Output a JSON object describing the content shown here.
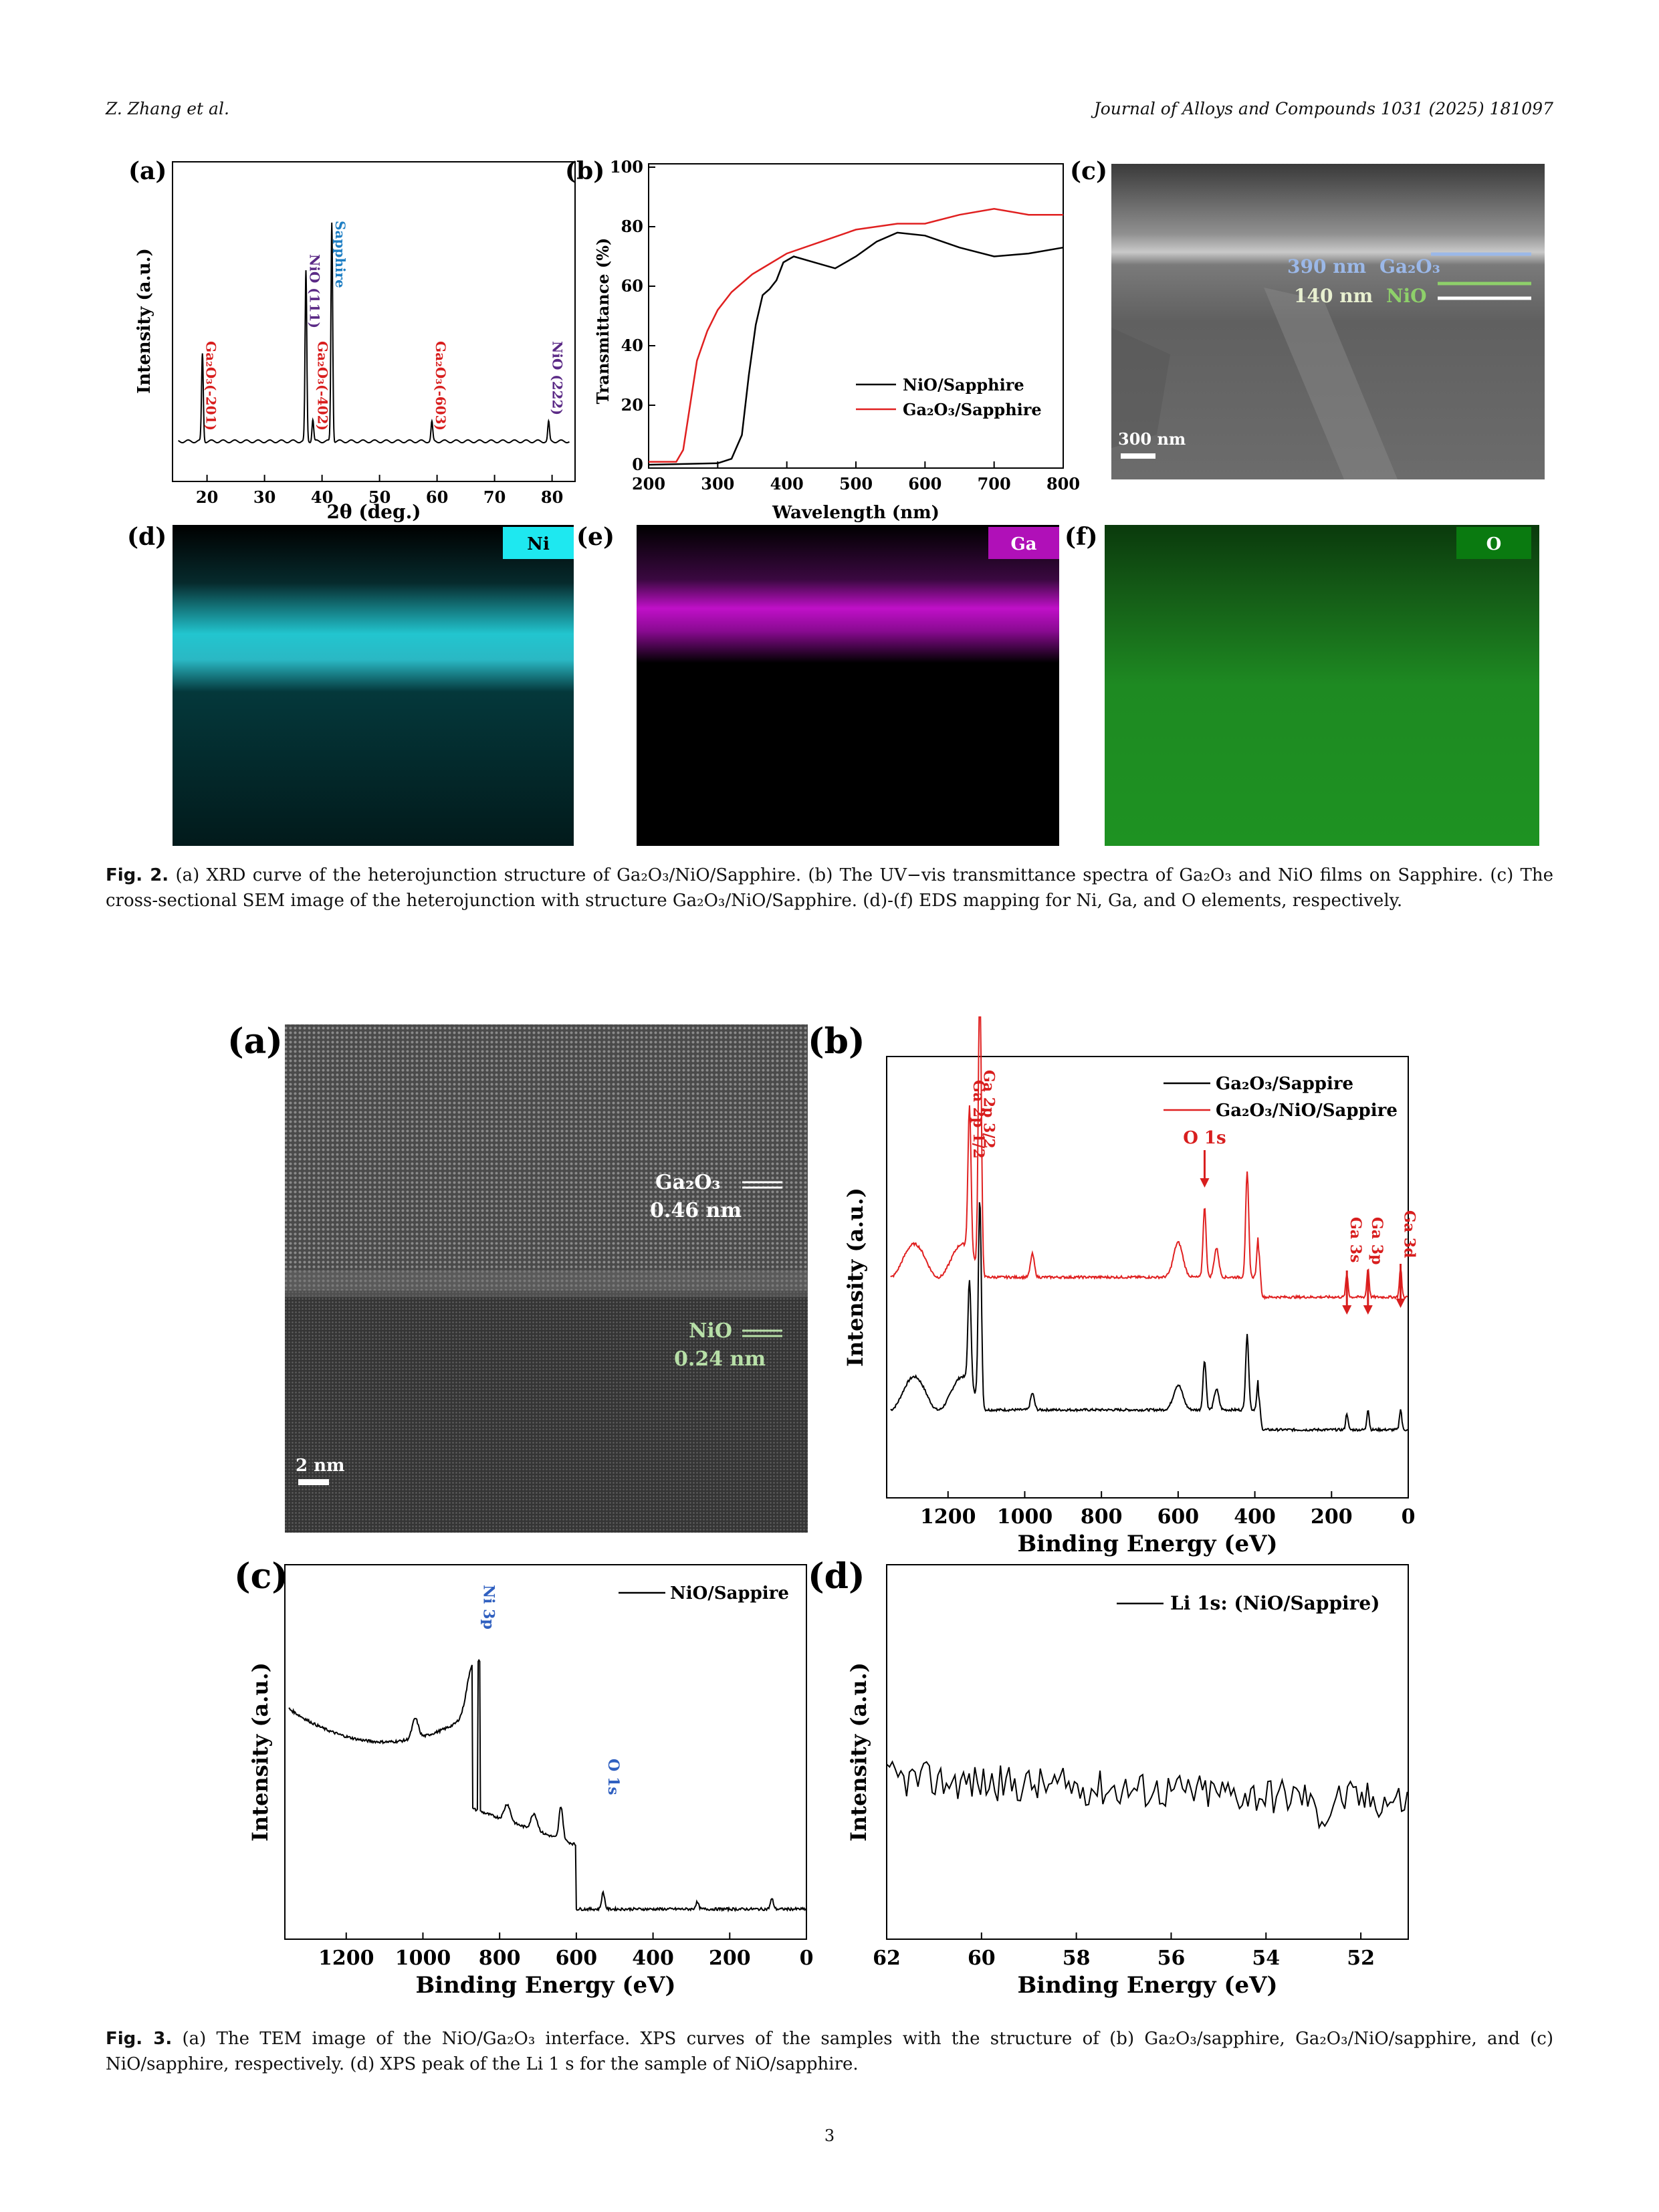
{
  "header": {
    "authors": "Z. Zhang et al.",
    "journal": "Journal of Alloys and Compounds 1031 (2025) 181097"
  },
  "fig2": {
    "caption": {
      "label": "Fig. 2.",
      "text": "(a) XRD curve of the heterojunction structure of Ga₂O₃/NiO/Sapphire. (b) The UV−vis transmittance spectra of Ga₂O₃ and NiO films on Sapphire. (c) The cross-sectional SEM image of the heterojunction with structure Ga₂O₃/NiO/Sapphire. (d)-(f) EDS mapping for Ni, Ga, and O elements, respectively."
    },
    "panels": {
      "a": "(a)",
      "b": "(b)",
      "c": "(c)",
      "d": "(d)",
      "e": "(e)",
      "f": "(f)"
    },
    "sem": {
      "layer1": "390 nm",
      "layer1_mat": "Ga₂O₃",
      "layer2": "140 nm",
      "layer2_mat": "NiO",
      "scale": "300 nm"
    },
    "eds": {
      "ni": "Ni",
      "ga": "Ga",
      "o": "O"
    }
  },
  "fig3": {
    "caption": {
      "label": "Fig. 3.",
      "text": "(a) The TEM image of the NiO/Ga₂O₃ interface. XPS curves of the samples with the structure of (b) Ga₂O₃/sapphire, Ga₂O₃/NiO/sapphire, and (c) NiO/sapphire, respectively. (d) XPS peak of the Li 1 s for the sample of NiO/sapphire."
    },
    "panels": {
      "a": "(a)",
      "b": "(b)",
      "c": "(c)",
      "d": "(d)"
    },
    "tem": {
      "ga_label": "Ga₂O₃",
      "ga_d": "0.46 nm",
      "nio_label": "NiO",
      "nio_d": "0.24 nm",
      "scale": "2 nm"
    }
  },
  "page_number": "3",
  "chart_data": [
    {
      "id": "fig2a",
      "type": "line",
      "xlabel": "2θ (deg.)",
      "ylabel": "Intensity (a.u.)",
      "xlim": [
        14,
        84
      ],
      "xticks": [
        20,
        30,
        40,
        50,
        60,
        70,
        80
      ],
      "series": [
        {
          "color": "#000000",
          "peaks": [
            {
              "x": 19.2,
              "h": 0.32
            },
            {
              "x": 37.2,
              "h": 0.62
            },
            {
              "x": 38.4,
              "h": 0.08
            },
            {
              "x": 41.7,
              "h": 0.8
            },
            {
              "x": 59.1,
              "h": 0.07
            },
            {
              "x": 79.4,
              "h": 0.07
            }
          ]
        }
      ],
      "annotations": [
        {
          "text": "Ga₂O₃(-201)",
          "x": 19.2,
          "color": "#d81e1e"
        },
        {
          "text": "NiO (111)",
          "x": 37.2,
          "color": "#5b2a86"
        },
        {
          "text": "Ga₂O₃(-402)",
          "x": 38.6,
          "color": "#d81e1e"
        },
        {
          "text": "Sapphire",
          "x": 41.7,
          "color": "#1f7fc4"
        },
        {
          "text": "Ga₂O₃(-603)",
          "x": 59.1,
          "color": "#d81e1e"
        },
        {
          "text": "NiO (222)",
          "x": 79.4,
          "color": "#5b2a86"
        }
      ]
    },
    {
      "id": "fig2b",
      "type": "line",
      "xlabel": "Wavelength (nm)",
      "ylabel": "Transmittance (%)",
      "xlim": [
        200,
        800
      ],
      "ylim": [
        0,
        100
      ],
      "xticks": [
        200,
        300,
        400,
        500,
        600,
        700,
        800
      ],
      "yticks": [
        0,
        20,
        40,
        60,
        80,
        100
      ],
      "legend": "center-right",
      "series": [
        {
          "name": "NiO/Sapphire",
          "color": "#000000",
          "x": [
            200,
            300,
            320,
            335,
            345,
            355,
            365,
            375,
            385,
            395,
            410,
            440,
            470,
            500,
            530,
            560,
            600,
            650,
            700,
            750,
            800
          ],
          "y": [
            0,
            0.5,
            2,
            10,
            30,
            47,
            57,
            59,
            62,
            68,
            70,
            68,
            66,
            70,
            75,
            78,
            77,
            73,
            70,
            71,
            73
          ]
        },
        {
          "name": "Ga₂O₃/Sapphire",
          "color": "#e02020",
          "x": [
            200,
            240,
            250,
            260,
            270,
            285,
            300,
            320,
            350,
            400,
            450,
            500,
            560,
            600,
            650,
            700,
            750,
            800
          ],
          "y": [
            1,
            1,
            5,
            20,
            35,
            45,
            52,
            58,
            64,
            71,
            75,
            79,
            81,
            81,
            84,
            86,
            84,
            84
          ]
        }
      ]
    },
    {
      "id": "fig3b",
      "type": "line",
      "xlabel": "Binding Energy (eV)",
      "ylabel": "Intensity (a.u.)",
      "xlim": [
        1360,
        0
      ],
      "xticks": [
        1200,
        1000,
        800,
        600,
        400,
        200,
        0
      ],
      "legend": "top-right",
      "series": [
        {
          "name": "Ga₂O₃/Sappire",
          "color": "#000000",
          "offset": 0.0
        },
        {
          "name": "Ga₂O₃/NiO/Sappire",
          "color": "#e02020",
          "offset": 0.32
        }
      ],
      "annotations": [
        {
          "text": "Ga 2p 1/2",
          "x": 1144,
          "color": "#d81e1e"
        },
        {
          "text": "Ga 2p 3/2",
          "x": 1117,
          "color": "#d81e1e"
        },
        {
          "text": "O 1s",
          "x": 531,
          "color": "#d81e1e"
        },
        {
          "text": "Ga 3s",
          "x": 160,
          "color": "#d81e1e"
        },
        {
          "text": "Ga 3p",
          "x": 105,
          "color": "#d81e1e"
        },
        {
          "text": "Ga 3d",
          "x": 20,
          "color": "#d81e1e"
        }
      ]
    },
    {
      "id": "fig3c",
      "type": "line",
      "xlabel": "Binding Energy (eV)",
      "ylabel": "Intensity (a.u.)",
      "xlim": [
        1360,
        0
      ],
      "xticks": [
        1200,
        1000,
        800,
        600,
        400,
        200,
        0
      ],
      "legend": "top-right",
      "series": [
        {
          "name": "NiO/Sappire",
          "color": "#000000"
        }
      ],
      "annotations": [
        {
          "text": "Ni 3p",
          "x": 855,
          "color": "#3060c0"
        },
        {
          "text": "O 1s",
          "x": 530,
          "color": "#3060c0"
        }
      ]
    },
    {
      "id": "fig3d",
      "type": "line",
      "xlabel": "Binding Energy (eV)",
      "ylabel": "Intensity (a.u.)",
      "xlim": [
        62,
        51
      ],
      "xticks": [
        62,
        60,
        58,
        56,
        54,
        52
      ],
      "legend": "top-right",
      "series": [
        {
          "name": "Li 1s: (NiO/Sappire)",
          "color": "#000000"
        }
      ]
    }
  ]
}
